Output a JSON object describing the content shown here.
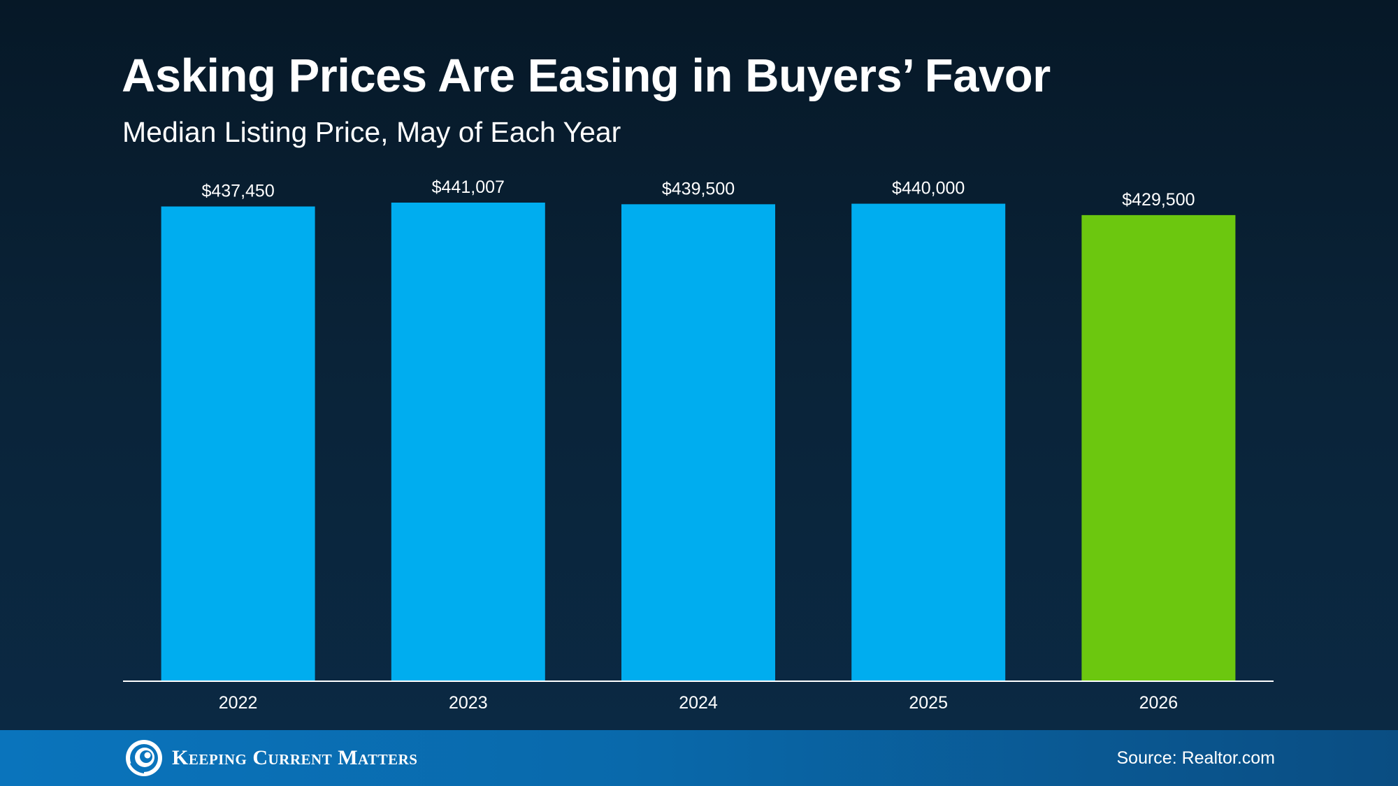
{
  "header": {
    "title": "Asking Prices Are Easing in Buyers’ Favor",
    "subtitle": "Median Listing Price, May of Each Year"
  },
  "chart_data": {
    "type": "bar",
    "title": "Asking Prices Are Easing in Buyers’ Favor",
    "subtitle": "Median Listing Price, May of Each Year",
    "xlabel": "",
    "ylabel": "",
    "categories": [
      "2022",
      "2023",
      "2024",
      "2025",
      "2026"
    ],
    "values": [
      437450,
      441007,
      439500,
      440000,
      429500
    ],
    "data_labels": [
      "$437,450",
      "$441,007",
      "$439,500",
      "$440,000",
      "$429,500"
    ],
    "bar_colors": [
      "#00adef",
      "#00adef",
      "#00adef",
      "#00adef",
      "#6cc70f"
    ],
    "ylim": [
      0,
      441007
    ],
    "grid": false,
    "legend": "none"
  },
  "colors": {
    "bar_default": "#00adef",
    "bar_highlight": "#6cc70f",
    "axis_line": "#ffffff",
    "footer_start": "#0a74bc",
    "footer_end": "#0a4d82"
  },
  "footer": {
    "brand_name": "Keeping Current Matters",
    "logo_icon": "swirl-logo-icon",
    "source": "Source: Realtor.com"
  }
}
